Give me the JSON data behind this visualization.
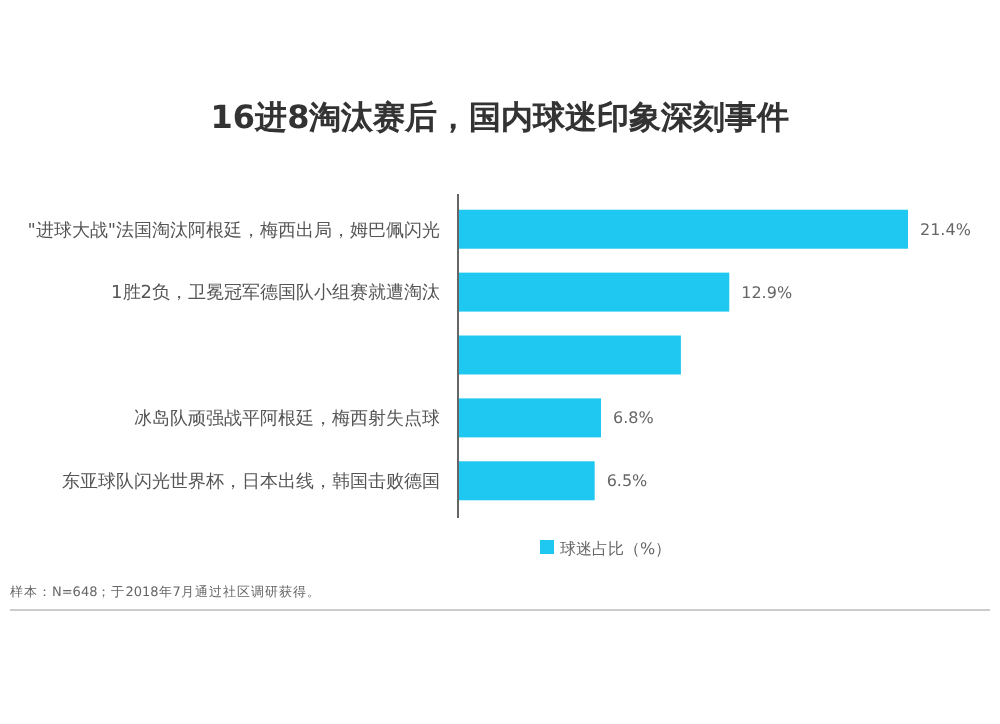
{
  "chart_data": {
    "type": "bar",
    "orientation": "horizontal",
    "title": "16进8淘汰赛后，国内球迷印象深刻事件",
    "categories": [
      "\"进球大战\"法国淘汰阿根廷，梅西出局，姆巴佩闪光",
      "1胜2负，卫冕冠军德国队小组赛就遭淘汰",
      null,
      "冰岛队顽强战平阿根廷，梅西射失点球",
      "东亚球队闪光世界杯，日本出线，韩国击败德国"
    ],
    "series": [
      {
        "name": "球迷占比（%）",
        "color": "#1fc8f0",
        "values": [
          21.4,
          12.9,
          10.6,
          6.8,
          6.5
        ],
        "value_labels": [
          "21.4%",
          "12.9%",
          null,
          "6.8%",
          "6.5%"
        ]
      }
    ],
    "legend": "bottom",
    "annotations": [
      "样本：N=648；于2018年7月通过社区调研获得。"
    ]
  }
}
